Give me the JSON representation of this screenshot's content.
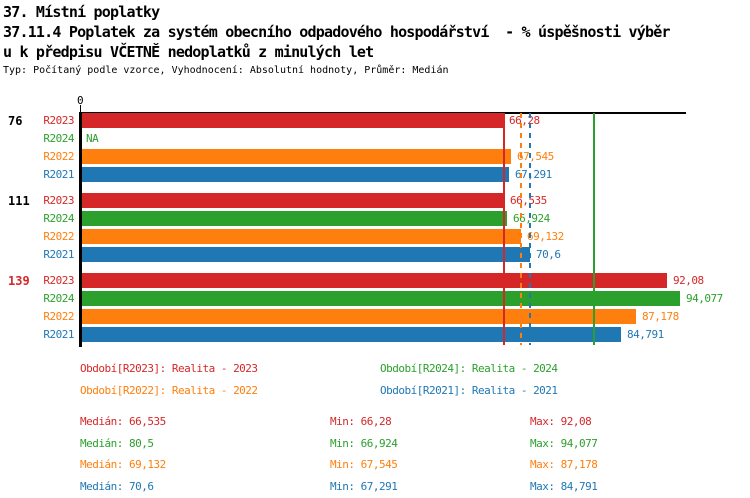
{
  "chart_data": {
    "type": "bar",
    "orientation": "horizontal",
    "title": "37. Místní poplatky",
    "subtitle_lines": [
      "37.11.4 Poplatek za systém obecního odpadového hospodářství  - % úspěšnosti výběr",
      "u k předpisu VČETNĚ nedoplatků z minulých let"
    ],
    "meta": "Typ: Počítaný podle vzorce, Vyhodnocení: Absolutní hodnoty, Průměr: Medián",
    "axis": {
      "origin_label": "0",
      "min": 0,
      "max": 95,
      "grid": false
    },
    "series_order": [
      "R2023",
      "R2024",
      "R2022",
      "R2021"
    ],
    "colors": {
      "R2023": "#d62728",
      "R2024": "#2ca02c",
      "R2022": "#ff7f0e",
      "R2021": "#1f77b4"
    },
    "groups": [
      {
        "label": "76",
        "label_color": "#000000",
        "bars": [
          {
            "series": "R2023",
            "value": 66.28,
            "value_label": "66,28",
            "color": "#d62728"
          },
          {
            "series": "R2024",
            "value": null,
            "value_label": "NA",
            "color": "#2ca02c"
          },
          {
            "series": "R2022",
            "value": 67.545,
            "value_label": "67,545",
            "color": "#ff7f0e"
          },
          {
            "series": "R2021",
            "value": 67.291,
            "value_label": "67,291",
            "color": "#1f77b4"
          }
        ]
      },
      {
        "label": "111",
        "label_color": "#000000",
        "bars": [
          {
            "series": "R2023",
            "value": 66.535,
            "value_label": "66,535",
            "color": "#d62728"
          },
          {
            "series": "R2024",
            "value": 66.924,
            "value_label": "66,924",
            "color": "#2ca02c"
          },
          {
            "series": "R2022",
            "value": 69.132,
            "value_label": "69,132",
            "color": "#ff7f0e"
          },
          {
            "series": "R2021",
            "value": 70.6,
            "value_label": "70,6",
            "color": "#1f77b4"
          }
        ]
      },
      {
        "label": "139",
        "label_color": "#d62728",
        "bars": [
          {
            "series": "R2023",
            "value": 92.08,
            "value_label": "92,08",
            "color": "#d62728"
          },
          {
            "series": "R2024",
            "value": 94.077,
            "value_label": "94,077",
            "color": "#2ca02c"
          },
          {
            "series": "R2022",
            "value": 87.178,
            "value_label": "87,178",
            "color": "#ff7f0e"
          },
          {
            "series": "R2021",
            "value": 84.791,
            "value_label": "84,791",
            "color": "#1f77b4"
          }
        ]
      }
    ],
    "median_lines": [
      {
        "series": "R2023",
        "value": 66.535,
        "color": "#d62728",
        "style": "solid"
      },
      {
        "series": "R2022",
        "value": 69.132,
        "color": "#ff7f0e",
        "style": "dashed"
      },
      {
        "series": "R2021",
        "value": 70.6,
        "color": "#1f77b4",
        "style": "dashed"
      },
      {
        "series": "R2024",
        "value": 80.5,
        "color": "#2ca02c",
        "style": "solid"
      }
    ],
    "legend": {
      "items": [
        {
          "series": "R2023",
          "label": "Období[R2023]: Realita - 2023",
          "color": "#d62728"
        },
        {
          "series": "R2024",
          "label": "Období[R2024]: Realita - 2024",
          "color": "#2ca02c"
        },
        {
          "series": "R2022",
          "label": "Období[R2022]: Realita - 2022",
          "color": "#ff7f0e"
        },
        {
          "series": "R2021",
          "label": "Období[R2021]: Realita - 2021",
          "color": "#1f77b4"
        }
      ]
    },
    "stats": {
      "labels": {
        "median": "Medián:",
        "min": "Min:",
        "max": "Max:"
      },
      "rows": [
        {
          "series": "R2023",
          "color": "#d62728",
          "median": "66,535",
          "min": "66,28",
          "max": "92,08"
        },
        {
          "series": "R2024",
          "color": "#2ca02c",
          "median": "80,5",
          "min": "66,924",
          "max": "94,077"
        },
        {
          "series": "R2022",
          "color": "#ff7f0e",
          "median": "69,132",
          "min": "67,545",
          "max": "87,178"
        },
        {
          "series": "R2021",
          "color": "#1f77b4",
          "median": "70,6",
          "min": "67,291",
          "max": "84,791"
        }
      ]
    }
  }
}
